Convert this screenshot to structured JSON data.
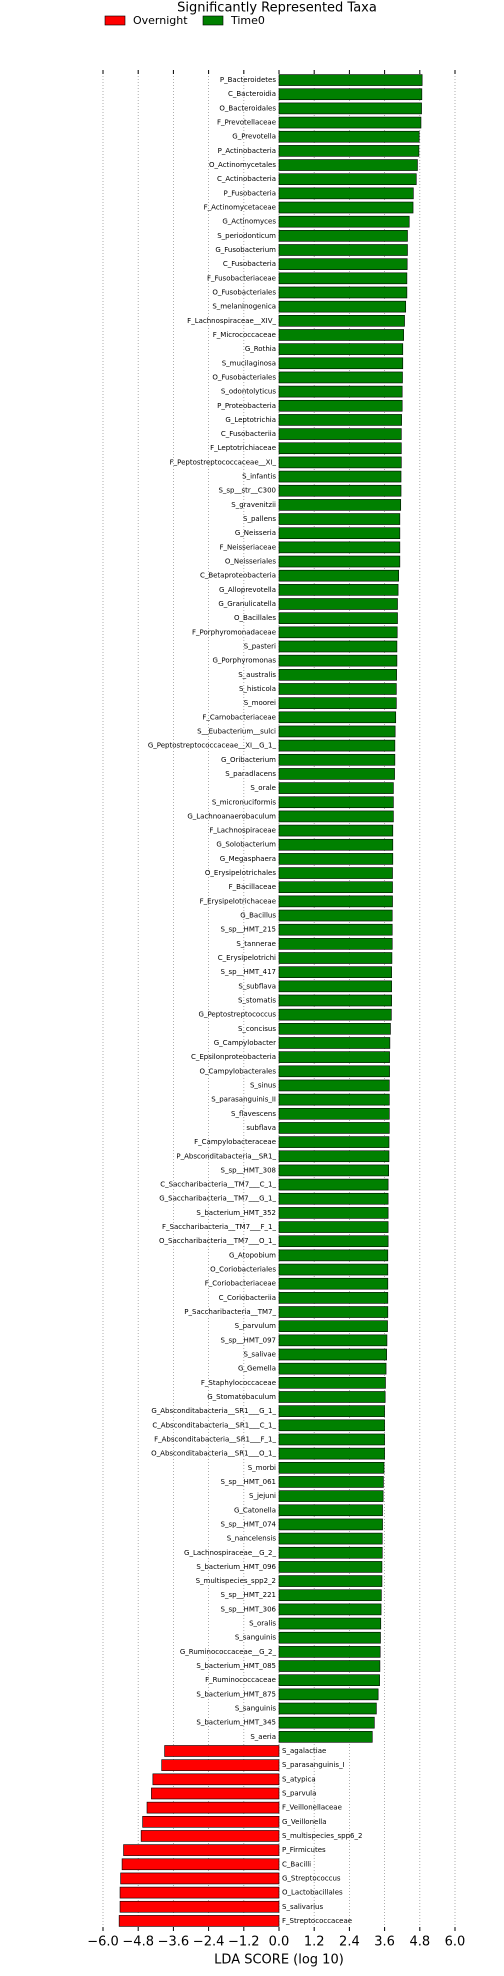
{
  "chart_data": {
    "type": "bar",
    "orientation": "horizontal",
    "title": "Significantly Represented Taxa",
    "xlabel": "LDA SCORE (log 10)",
    "xlim": [
      -6,
      6
    ],
    "xticks": [
      {
        "value": -6,
        "label": "−6.0"
      },
      {
        "value": -4.8,
        "label": "−4.8"
      },
      {
        "value": -3.6,
        "label": "−3.6"
      },
      {
        "value": -2.4,
        "label": "−2.4"
      },
      {
        "value": -1.2,
        "label": "−1.2"
      },
      {
        "value": 0,
        "label": "0.0"
      },
      1.2,
      2.4,
      3.6,
      4.8,
      {
        "value": 6,
        "label": "6.0"
      }
    ],
    "grid": true,
    "legend": "upper left",
    "categories": [
      "P_Bacteroidetes",
      "C_Bacteroidia",
      "O_Bacteroidales",
      "F_Prevotellaceae",
      "G_Prevotella",
      "P_Actinobacteria",
      "O_Actinomycetales",
      "C_Actinobacteria",
      "P_Fusobacteria",
      "F_Actinomycetaceae",
      "G_Actinomyces",
      "S_periodonticum",
      "G_Fusobacterium",
      "C_Fusobacteria",
      "F_Fusobacteriaceae",
      "O_Fusobacteriales",
      "S_melaninogenica",
      "F_Lachnospiraceae__XIV_",
      "F_Micrococcaceae",
      "G_Rothia",
      "S_mucilaginosa",
      "O_Fusobacteriales",
      "S_odontolyticus",
      "P_Proteobacteria",
      "G_Leptotrichia",
      "C_Fusobacteriia",
      "F_Leptotrichiaceae",
      "F_Peptostreptococcaceae__XI_",
      "S_infantis",
      "S_sp__str__C300",
      "S_gravenitzii",
      "S_pallens",
      "G_Neisseria",
      "F_Neisseriaceae",
      "O_Neisseriales",
      "C_Betaproteobacteria",
      "G_Alloprevotella",
      "G_Granulicatella",
      "O_Bacillales",
      "F_Porphyromonadaceae",
      "S_pasteri",
      "G_Porphyromonas",
      "S_australis",
      "S_histicola",
      "S_moorei",
      "F_Carnobacteriaceae",
      "S__Eubacterium__sulci",
      "G_Peptostreptococcaceae__XI__G_1_",
      "G_Oribacterium",
      "S_paradlacens",
      "S_orale",
      "S_micronuciformis",
      "G_Lachnoanaerobaculum",
      "F_Lachnospiraceae",
      "G_Solobacterium",
      "G_Megasphaera",
      "O_Erysipelotrichales",
      "F_Bacillaceae",
      "F_Erysipelotrichaceae",
      "G_Bacillus",
      "S_sp__HMT_215",
      "S_tannerae",
      "C_Erysipelotrichi",
      "S_sp__HMT_417",
      "S_subflava",
      "S_stomatis",
      "G_Peptostreptococcus",
      "S_concisus",
      "G_Campylobacter",
      "C_Epsilonproteobacteria",
      "O_Campylobacterales",
      "S_sinus",
      "S_parasanguinis_II",
      "S_flavescens",
      "subflava",
      "F_Campylobacteraceae",
      "P_Absconditabacteria__SR1_",
      "S_sp__HMT_308",
      "C_Saccharibacteria__TM7___C_1_",
      "G_Saccharibacteria__TM7___G_1_",
      "S_bacterium_HMT_352",
      "F_Saccharibacteria__TM7___F_1_",
      "O_Saccharibacteria__TM7___O_1_",
      "G_Atopobium",
      "O_Coriobacteriales",
      "F_Coriobacteriaceae",
      "C_Coriobacteriia",
      "P_Saccharibacteria__TM7_",
      "S_parvulum",
      "S_sp__HMT_097",
      "S_salivae",
      "G_Gemella",
      "F_Staphylococcaceae",
      "G_Stomatobaculum",
      "G_Absconditabacteria__SR1___G_1_",
      "C_Absconditabacteria__SR1___C_1_",
      "F_Absconditabacteria__SR1___F_1_",
      "O_Absconditabacteria__SR1___O_1_",
      "S_morbi",
      "S_sp__HMT_061",
      "S_jejuni",
      "G_Catonella",
      "S_sp__HMT_074",
      "S_nancelensis",
      "G_Lachnospiraceae__G_2_",
      "S_bacterium_HMT_096",
      "S_multispecies_spp2_2",
      "S_sp__HMT_221",
      "S_sp__HMT_306",
      "S_oralis",
      "S_sanguinis",
      "G_Ruminococcaceae__G_2_",
      "S_bacterium_HMT_085",
      "F_Ruminococcaceae",
      "S_bacterium_HMT_875",
      "S_sanguinis",
      "S_bacterium_HMT_345",
      "S_aeria",
      "S_agalactiae",
      "S_parasanguinis_I",
      "S_atypica",
      "S_parvula",
      "F_Veillonellaceae",
      "G_Veillonella",
      "S_multispecies_spp6_2",
      "P_Firmicutes",
      "C_Bacilli",
      "G_Streptococcus",
      "O_Lactobacillales",
      "S_salivarius",
      "F_Streptococcaceae"
    ],
    "series": [
      {
        "name": "Overnight",
        "color": "#ff0000",
        "values": [
          null,
          null,
          null,
          null,
          null,
          null,
          null,
          null,
          null,
          null,
          null,
          null,
          null,
          null,
          null,
          null,
          null,
          null,
          null,
          null,
          null,
          null,
          null,
          null,
          null,
          null,
          null,
          null,
          null,
          null,
          null,
          null,
          null,
          null,
          null,
          null,
          null,
          null,
          null,
          null,
          null,
          null,
          null,
          null,
          null,
          null,
          null,
          null,
          null,
          null,
          null,
          null,
          null,
          null,
          null,
          null,
          null,
          null,
          null,
          null,
          null,
          null,
          null,
          null,
          null,
          null,
          null,
          null,
          null,
          null,
          null,
          null,
          null,
          null,
          null,
          null,
          null,
          null,
          null,
          null,
          null,
          null,
          null,
          null,
          null,
          null,
          null,
          null,
          null,
          null,
          null,
          null,
          null,
          null,
          null,
          null,
          null,
          null,
          null,
          null,
          null,
          null,
          null,
          null,
          null,
          null,
          null,
          null,
          null,
          null,
          null,
          null,
          null,
          null,
          null,
          null,
          null,
          null,
          -3.9,
          -4.0,
          -4.3,
          -4.35,
          -4.5,
          -4.65,
          -4.7,
          -5.3,
          -5.35,
          -5.4,
          -5.42,
          -5.42,
          -5.45
        ]
      },
      {
        "name": "Time0",
        "color": "#008000",
        "values": [
          4.88,
          4.87,
          4.86,
          4.84,
          4.78,
          4.77,
          4.72,
          4.68,
          4.58,
          4.57,
          4.44,
          4.38,
          4.38,
          4.37,
          4.36,
          4.36,
          4.32,
          4.28,
          4.25,
          4.22,
          4.22,
          4.21,
          4.2,
          4.2,
          4.18,
          4.17,
          4.17,
          4.17,
          4.16,
          4.16,
          4.15,
          4.12,
          4.12,
          4.12,
          4.12,
          4.08,
          4.06,
          4.04,
          4.04,
          4.03,
          4.02,
          4.02,
          4.01,
          4.0,
          4.0,
          3.98,
          3.96,
          3.95,
          3.95,
          3.94,
          3.9,
          3.9,
          3.9,
          3.88,
          3.88,
          3.88,
          3.87,
          3.87,
          3.87,
          3.86,
          3.86,
          3.86,
          3.85,
          3.84,
          3.84,
          3.84,
          3.83,
          3.8,
          3.78,
          3.77,
          3.77,
          3.76,
          3.76,
          3.76,
          3.76,
          3.75,
          3.75,
          3.74,
          3.72,
          3.72,
          3.72,
          3.72,
          3.72,
          3.71,
          3.71,
          3.71,
          3.71,
          3.71,
          3.7,
          3.68,
          3.67,
          3.65,
          3.63,
          3.62,
          3.6,
          3.6,
          3.6,
          3.6,
          3.58,
          3.56,
          3.55,
          3.53,
          3.53,
          3.52,
          3.52,
          3.51,
          3.51,
          3.49,
          3.48,
          3.47,
          3.46,
          3.45,
          3.44,
          3.43,
          3.38,
          3.32,
          3.25,
          3.18,
          null,
          null,
          null,
          null,
          null,
          null,
          null,
          null,
          null,
          null,
          null,
          null,
          null
        ]
      }
    ]
  }
}
